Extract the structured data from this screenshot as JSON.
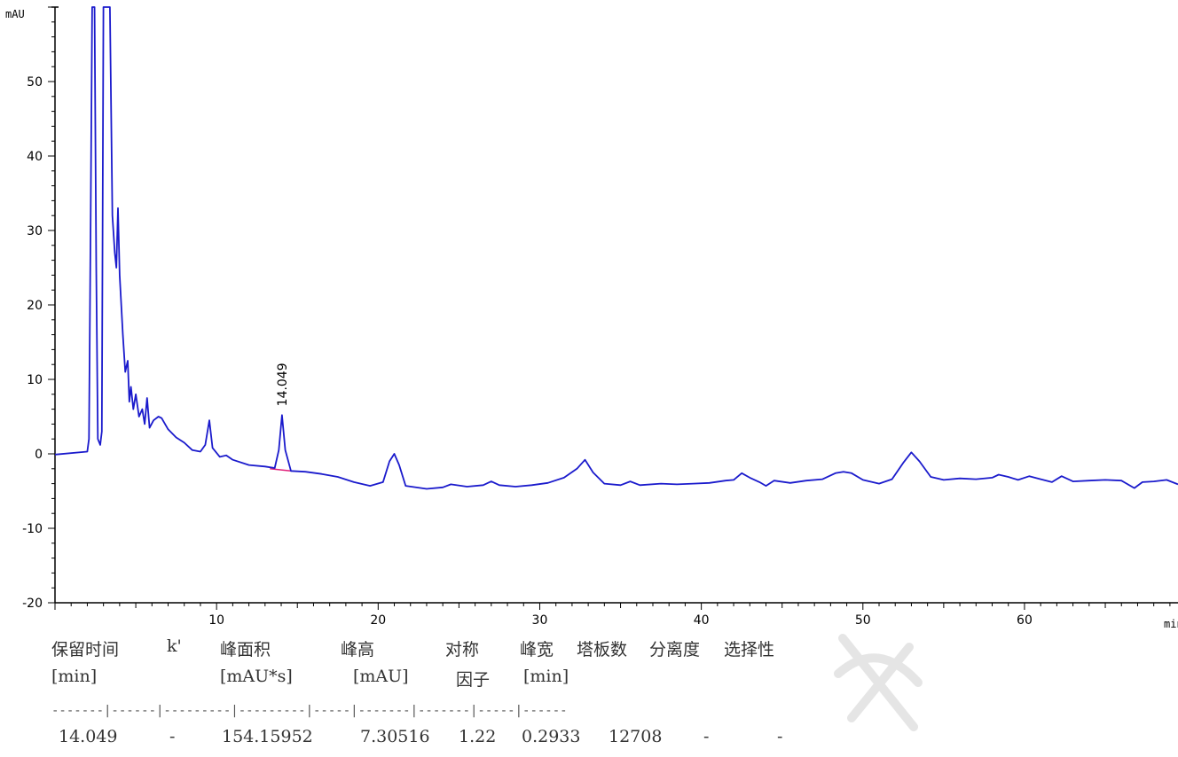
{
  "chart_data": {
    "type": "line",
    "title": "",
    "xlabel": "min",
    "ylabel": "mAU",
    "xlim": [
      0,
      69.5
    ],
    "ylim": [
      -20,
      60
    ],
    "x_ticks": [
      10,
      20,
      30,
      40,
      50,
      60
    ],
    "y_ticks": [
      -20,
      -10,
      0,
      10,
      20,
      30,
      40,
      50
    ],
    "grid": false,
    "series": [
      {
        "color": "#1a1acc",
        "points": [
          [
            0,
            -0.1
          ],
          [
            2.0,
            0.3
          ],
          [
            2.1,
            2
          ],
          [
            2.2,
            30
          ],
          [
            2.3,
            60
          ],
          [
            2.45,
            60
          ],
          [
            2.55,
            25
          ],
          [
            2.65,
            2
          ],
          [
            2.8,
            1.2
          ],
          [
            2.9,
            3
          ],
          [
            3.0,
            60
          ],
          [
            3.4,
            60
          ],
          [
            3.55,
            32
          ],
          [
            3.7,
            27
          ],
          [
            3.8,
            25
          ],
          [
            3.9,
            33
          ],
          [
            4.0,
            24
          ],
          [
            4.1,
            20
          ],
          [
            4.2,
            16
          ],
          [
            4.35,
            11
          ],
          [
            4.5,
            12.5
          ],
          [
            4.6,
            7
          ],
          [
            4.7,
            9
          ],
          [
            4.85,
            6
          ],
          [
            5.0,
            8
          ],
          [
            5.2,
            5
          ],
          [
            5.4,
            6
          ],
          [
            5.55,
            4
          ],
          [
            5.7,
            7.5
          ],
          [
            5.85,
            3.5
          ],
          [
            6.1,
            4.5
          ],
          [
            6.4,
            5
          ],
          [
            6.6,
            4.8
          ],
          [
            7.0,
            3.3
          ],
          [
            7.5,
            2.2
          ],
          [
            8.0,
            1.5
          ],
          [
            8.5,
            0.5
          ],
          [
            9.0,
            0.3
          ],
          [
            9.3,
            1.2
          ],
          [
            9.55,
            4.5
          ],
          [
            9.75,
            0.8
          ],
          [
            10.2,
            -0.4
          ],
          [
            10.6,
            -0.2
          ],
          [
            11.0,
            -0.8
          ],
          [
            12.0,
            -1.5
          ],
          [
            13.0,
            -1.7
          ],
          [
            13.6,
            -1.9
          ],
          [
            13.85,
            0.5
          ],
          [
            14.049,
            5.2
          ],
          [
            14.25,
            0.5
          ],
          [
            14.6,
            -2.3
          ],
          [
            15.5,
            -2.4
          ],
          [
            16.5,
            -2.7
          ],
          [
            17.5,
            -3.1
          ],
          [
            18.5,
            -3.8
          ],
          [
            19.5,
            -4.3
          ],
          [
            20.3,
            -3.8
          ],
          [
            20.7,
            -1.0
          ],
          [
            21.0,
            0.0
          ],
          [
            21.3,
            -1.5
          ],
          [
            21.7,
            -4.3
          ],
          [
            23.0,
            -4.7
          ],
          [
            24.0,
            -4.5
          ],
          [
            24.5,
            -4.1
          ],
          [
            25.5,
            -4.4
          ],
          [
            26.5,
            -4.2
          ],
          [
            27.0,
            -3.7
          ],
          [
            27.5,
            -4.2
          ],
          [
            28.5,
            -4.4
          ],
          [
            29.5,
            -4.2
          ],
          [
            30.5,
            -3.9
          ],
          [
            31.5,
            -3.2
          ],
          [
            32.3,
            -2.0
          ],
          [
            32.8,
            -0.8
          ],
          [
            33.3,
            -2.5
          ],
          [
            34.0,
            -4.0
          ],
          [
            35.0,
            -4.2
          ],
          [
            35.6,
            -3.7
          ],
          [
            36.2,
            -4.2
          ],
          [
            37.5,
            -4.0
          ],
          [
            38.5,
            -4.1
          ],
          [
            39.5,
            -4.0
          ],
          [
            40.5,
            -3.9
          ],
          [
            41.5,
            -3.6
          ],
          [
            42.0,
            -3.5
          ],
          [
            42.5,
            -2.6
          ],
          [
            43.0,
            -3.2
          ],
          [
            43.6,
            -3.8
          ],
          [
            44.0,
            -4.3
          ],
          [
            44.5,
            -3.6
          ],
          [
            45.5,
            -3.9
          ],
          [
            46.5,
            -3.6
          ],
          [
            47.5,
            -3.4
          ],
          [
            48.3,
            -2.6
          ],
          [
            48.8,
            -2.4
          ],
          [
            49.3,
            -2.6
          ],
          [
            50.0,
            -3.5
          ],
          [
            51.0,
            -4.0
          ],
          [
            51.8,
            -3.4
          ],
          [
            52.5,
            -1.2
          ],
          [
            53.0,
            0.2
          ],
          [
            53.5,
            -1.0
          ],
          [
            54.2,
            -3.1
          ],
          [
            55.0,
            -3.5
          ],
          [
            56.0,
            -3.3
          ],
          [
            57.0,
            -3.4
          ],
          [
            58.0,
            -3.2
          ],
          [
            58.4,
            -2.8
          ],
          [
            59.0,
            -3.1
          ],
          [
            59.6,
            -3.5
          ],
          [
            60.3,
            -3.0
          ],
          [
            61.0,
            -3.4
          ],
          [
            61.7,
            -3.8
          ],
          [
            62.3,
            -3.0
          ],
          [
            63.0,
            -3.7
          ],
          [
            64.0,
            -3.6
          ],
          [
            65.0,
            -3.5
          ],
          [
            66.0,
            -3.6
          ],
          [
            66.8,
            -4.6
          ],
          [
            67.3,
            -3.8
          ],
          [
            68.0,
            -3.7
          ],
          [
            68.8,
            -3.5
          ],
          [
            69.5,
            -4.1
          ]
        ]
      }
    ],
    "annotations": [
      {
        "text": "14.049",
        "x": 14.049,
        "y": 5.2
      }
    ]
  },
  "results": {
    "headers": [
      {
        "line1": "保留时间",
        "line2": "[min]"
      },
      {
        "line1": "k'",
        "line2": ""
      },
      {
        "line1": "峰面积",
        "line2": "[mAU*s]"
      },
      {
        "line1": "峰高",
        "line2": "[mAU]"
      },
      {
        "line1": "对称",
        "line2": "因子"
      },
      {
        "line1": "峰宽",
        "line2": "[min]"
      },
      {
        "line1": "塔板数",
        "line2": ""
      },
      {
        "line1": "分离度",
        "line2": ""
      },
      {
        "line1": "选择性",
        "line2": ""
      }
    ],
    "separator": "-------|------|---------|---------|-----|-------|-------|-----|------",
    "row": [
      "14.049",
      "-",
      "154.15952",
      "7.30516",
      "1.22",
      "0.2933",
      "12708",
      "-",
      "-"
    ]
  }
}
